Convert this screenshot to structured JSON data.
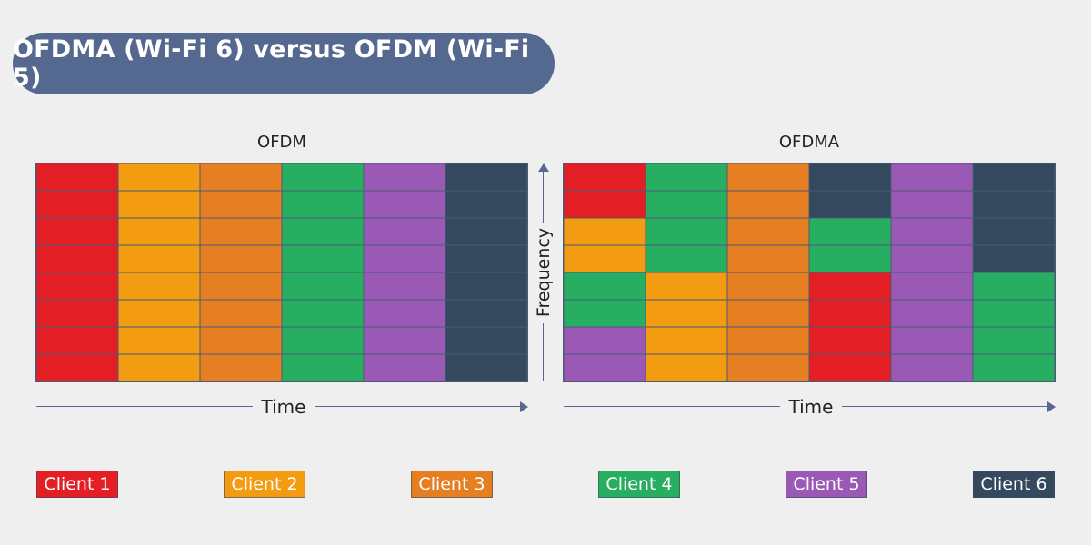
{
  "title": "OFDMA (Wi-Fi 6) versus OFDM (Wi-Fi 5)",
  "colors": {
    "c1": "#e31e24",
    "c2": "#f39c12",
    "c3": "#e67e22",
    "c4": "#27ae60",
    "c5": "#9b59b6",
    "c6": "#34495e"
  },
  "panels": [
    {
      "title": "OFDM",
      "time_label": "Time",
      "grid": [
        [
          "c1",
          "c2",
          "c3",
          "c4",
          "c5",
          "c6"
        ],
        [
          "c1",
          "c2",
          "c3",
          "c4",
          "c5",
          "c6"
        ],
        [
          "c1",
          "c2",
          "c3",
          "c4",
          "c5",
          "c6"
        ],
        [
          "c1",
          "c2",
          "c3",
          "c4",
          "c5",
          "c6"
        ],
        [
          "c1",
          "c2",
          "c3",
          "c4",
          "c5",
          "c6"
        ],
        [
          "c1",
          "c2",
          "c3",
          "c4",
          "c5",
          "c6"
        ],
        [
          "c1",
          "c2",
          "c3",
          "c4",
          "c5",
          "c6"
        ],
        [
          "c1",
          "c2",
          "c3",
          "c4",
          "c5",
          "c6"
        ]
      ]
    },
    {
      "title": "OFDMA",
      "time_label": "Time",
      "grid": [
        [
          "c1",
          "c4",
          "c3",
          "c6",
          "c5",
          "c6"
        ],
        [
          "c1",
          "c4",
          "c3",
          "c6",
          "c5",
          "c6"
        ],
        [
          "c2",
          "c4",
          "c3",
          "c4",
          "c5",
          "c6"
        ],
        [
          "c2",
          "c4",
          "c3",
          "c4",
          "c5",
          "c6"
        ],
        [
          "c4",
          "c2",
          "c3",
          "c1",
          "c5",
          "c4"
        ],
        [
          "c4",
          "c2",
          "c3",
          "c1",
          "c5",
          "c4"
        ],
        [
          "c5",
          "c2",
          "c3",
          "c1",
          "c5",
          "c4"
        ],
        [
          "c5",
          "c2",
          "c3",
          "c1",
          "c5",
          "c4"
        ]
      ]
    }
  ],
  "frequency_label": "Frequency",
  "legend": [
    {
      "label": "Client 1",
      "color": "c1"
    },
    {
      "label": "Client 2",
      "color": "c2"
    },
    {
      "label": "Client 3",
      "color": "c3"
    },
    {
      "label": "Client 4",
      "color": "c4"
    },
    {
      "label": "Client 5",
      "color": "c5"
    },
    {
      "label": "Client 6",
      "color": "c6"
    }
  ]
}
